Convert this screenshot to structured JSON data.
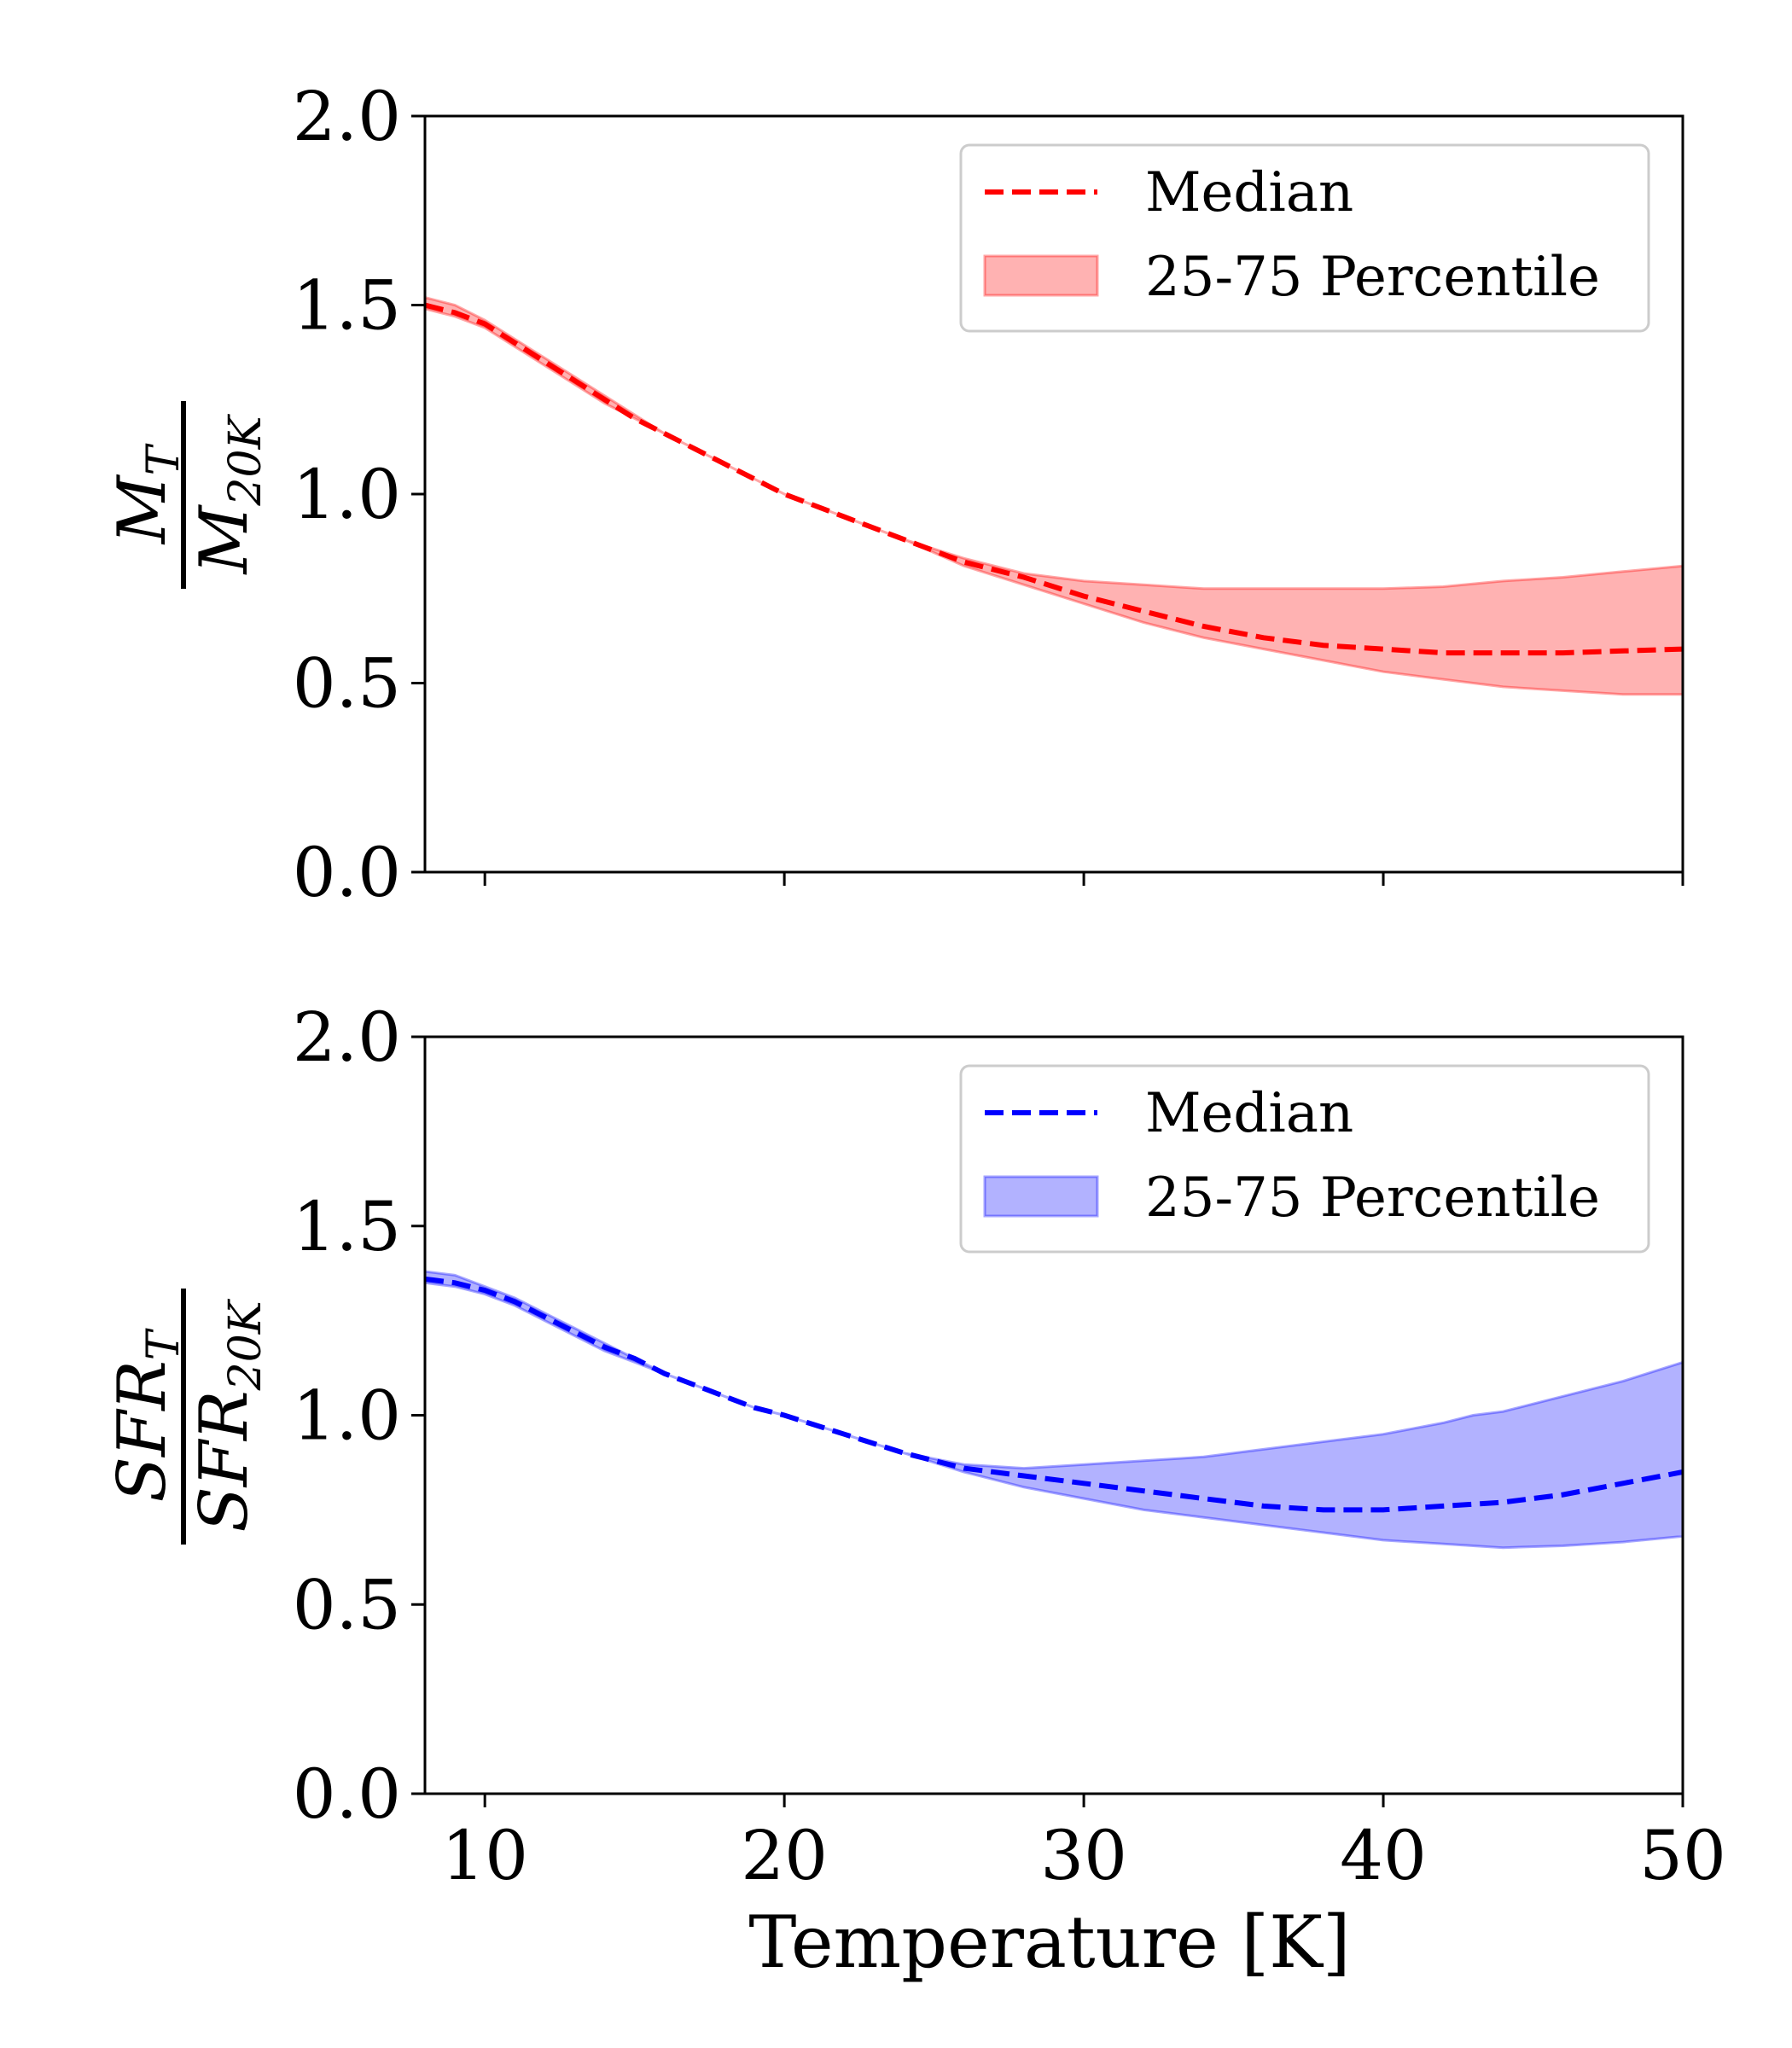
{
  "colors": {
    "panel_1_line": "#ff0000",
    "panel_1_fill": "#ff0000",
    "panel_2_line": "#0000ff",
    "panel_2_fill": "#0000ff"
  },
  "chart_data": [
    {
      "type": "line",
      "ylabel": {
        "num_main": "M",
        "num_sub": "T",
        "den_main": "M",
        "den_sub": "20K"
      },
      "xlim": [
        8,
        50
      ],
      "ylim": [
        0.0,
        2.0
      ],
      "xticks": [
        10,
        20,
        30,
        40,
        50
      ],
      "yticks": [
        "0.0",
        "0.5",
        "1.0",
        "1.5",
        "2.0"
      ],
      "show_x_tick_labels": false,
      "grid": false,
      "legend": {
        "placement": "top-right",
        "median_label": "Median",
        "band_label": "25-75 Percentile"
      },
      "x": [
        8,
        9,
        10,
        11,
        12,
        13,
        14,
        15,
        16,
        17,
        18,
        19,
        20,
        22,
        24,
        26,
        28,
        30,
        32,
        34,
        36,
        38,
        40,
        42,
        44,
        46,
        48,
        50
      ],
      "median": [
        1.5,
        1.48,
        1.45,
        1.4,
        1.35,
        1.3,
        1.25,
        1.2,
        1.16,
        1.12,
        1.08,
        1.04,
        1.0,
        0.94,
        0.88,
        0.82,
        0.78,
        0.73,
        0.69,
        0.65,
        0.62,
        0.6,
        0.59,
        0.58,
        0.58,
        0.58,
        0.585,
        0.59
      ],
      "lower": [
        1.49,
        1.47,
        1.44,
        1.39,
        1.34,
        1.29,
        1.24,
        1.2,
        1.16,
        1.12,
        1.08,
        1.04,
        1.0,
        0.94,
        0.88,
        0.81,
        0.76,
        0.71,
        0.66,
        0.62,
        0.59,
        0.56,
        0.53,
        0.51,
        0.49,
        0.48,
        0.47,
        0.47
      ],
      "upper": [
        1.52,
        1.5,
        1.46,
        1.41,
        1.36,
        1.31,
        1.26,
        1.21,
        1.16,
        1.12,
        1.08,
        1.04,
        1.0,
        0.94,
        0.88,
        0.83,
        0.79,
        0.77,
        0.76,
        0.75,
        0.75,
        0.75,
        0.75,
        0.755,
        0.77,
        0.78,
        0.795,
        0.81
      ]
    },
    {
      "type": "line",
      "xlabel": "Temperature [K]",
      "ylabel": {
        "num_main": "SFR",
        "num_sub": "T",
        "den_main": "SFR",
        "den_sub": "20K"
      },
      "xlim": [
        8,
        50
      ],
      "ylim": [
        0.0,
        2.0
      ],
      "xticks": [
        10,
        20,
        30,
        40,
        50
      ],
      "yticks": [
        "0.0",
        "0.5",
        "1.0",
        "1.5",
        "2.0"
      ],
      "show_x_tick_labels": true,
      "grid": false,
      "legend": {
        "placement": "top-right",
        "median_label": "Median",
        "band_label": "25-75 Percentile"
      },
      "x": [
        8,
        9,
        10,
        11,
        12,
        13,
        14,
        15,
        16,
        17,
        18,
        19,
        20,
        22,
        24,
        26,
        28,
        30,
        32,
        34,
        36,
        38,
        40,
        42,
        43,
        44,
        46,
        48,
        50
      ],
      "median": [
        1.36,
        1.35,
        1.33,
        1.3,
        1.26,
        1.22,
        1.18,
        1.15,
        1.11,
        1.08,
        1.05,
        1.02,
        1.0,
        0.95,
        0.9,
        0.86,
        0.84,
        0.82,
        0.8,
        0.78,
        0.76,
        0.75,
        0.75,
        0.76,
        0.765,
        0.77,
        0.79,
        0.82,
        0.85
      ],
      "lower": [
        1.35,
        1.34,
        1.32,
        1.29,
        1.25,
        1.21,
        1.17,
        1.14,
        1.11,
        1.08,
        1.05,
        1.02,
        1.0,
        0.95,
        0.9,
        0.85,
        0.81,
        0.78,
        0.75,
        0.73,
        0.71,
        0.69,
        0.67,
        0.66,
        0.655,
        0.65,
        0.655,
        0.665,
        0.68
      ],
      "upper": [
        1.38,
        1.37,
        1.34,
        1.31,
        1.27,
        1.23,
        1.19,
        1.15,
        1.11,
        1.08,
        1.05,
        1.02,
        1.0,
        0.95,
        0.9,
        0.87,
        0.86,
        0.87,
        0.88,
        0.89,
        0.91,
        0.93,
        0.95,
        0.98,
        1.0,
        1.01,
        1.05,
        1.09,
        1.14
      ]
    }
  ]
}
